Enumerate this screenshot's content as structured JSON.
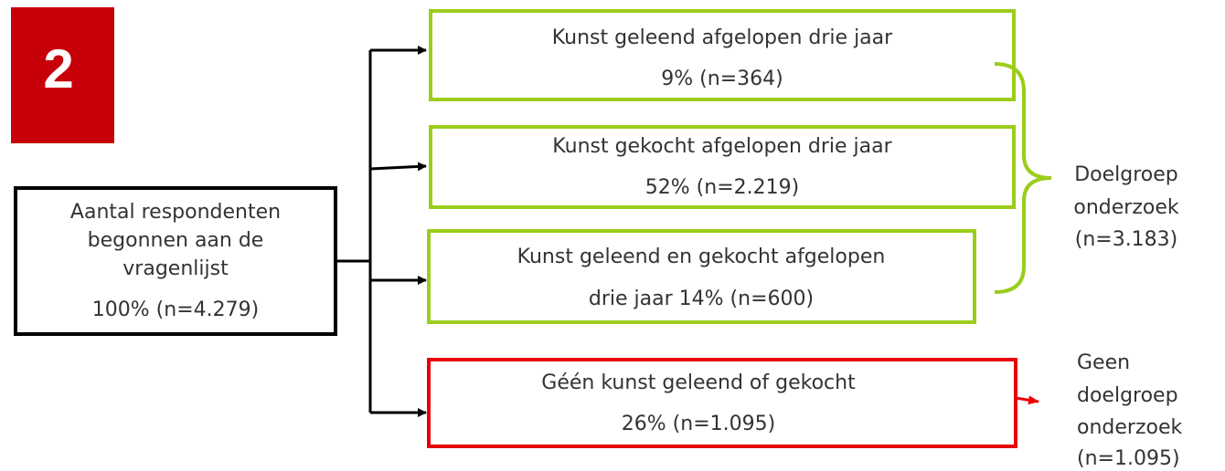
{
  "badge": "2",
  "source": {
    "lines": [
      "Aantal respondenten",
      "begonnen aan de",
      "vragenlijst",
      "100% (n=4.279)"
    ]
  },
  "nodes": [
    {
      "lines": [
        "Kunst geleend afgelopen drie jaar",
        "9% (n=364)"
      ]
    },
    {
      "lines": [
        "Kunst gekocht afgelopen drie jaar",
        "52% (n=2.219)"
      ]
    },
    {
      "lines": [
        "Kunst geleend en gekocht afgelopen",
        "drie jaar 14% (n=600)"
      ]
    },
    {
      "lines": [
        "Géén kunst geleend of gekocht",
        "26% (n=1.095)"
      ]
    }
  ],
  "groups": [
    {
      "lines": [
        "Doelgroep",
        "onderzoek",
        "(n=3.183)"
      ]
    },
    {
      "lines": [
        "Geen",
        "doelgroep",
        "onderzoek",
        "(n=1.095)"
      ]
    }
  ]
}
